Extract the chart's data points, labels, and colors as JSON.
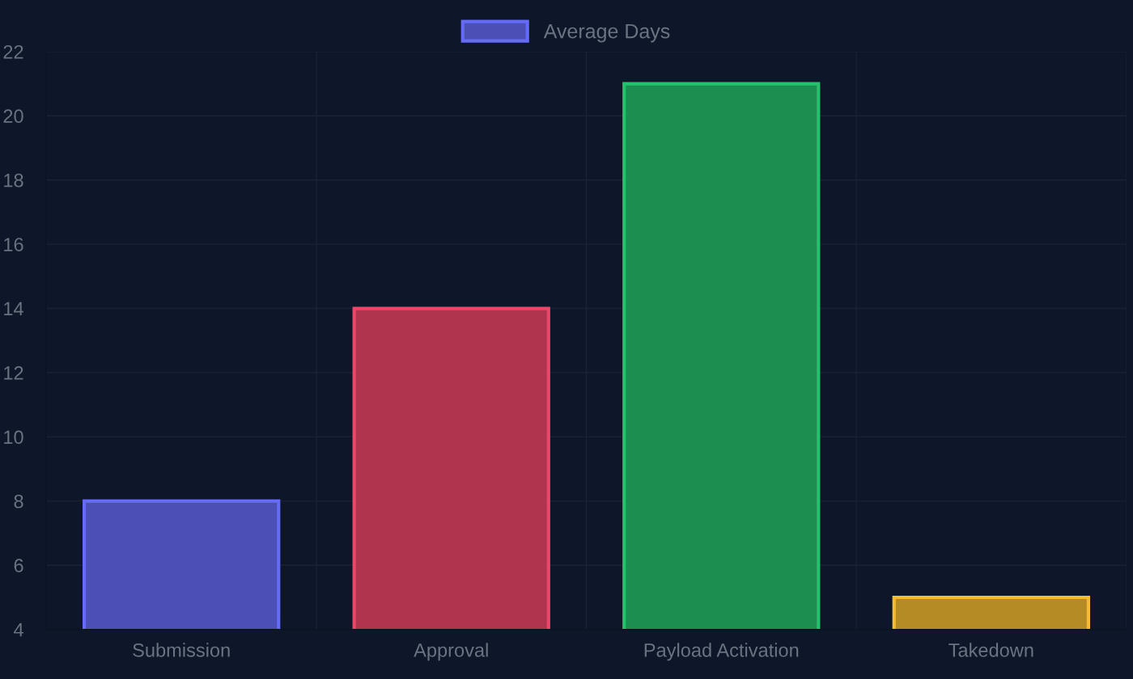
{
  "chart_data": {
    "type": "bar",
    "categories": [
      "Submission",
      "Approval",
      "Payload Activation",
      "Takedown"
    ],
    "series": [
      {
        "name": "Average Days",
        "values": [
          8,
          14,
          21,
          5
        ],
        "colors": [
          "#4b4fb6",
          "#b0344e",
          "#1c8f50",
          "#b58b26"
        ]
      }
    ],
    "ylim": [
      4,
      22
    ],
    "yticks": [
      4,
      6,
      8,
      10,
      12,
      14,
      16,
      18,
      20,
      22
    ],
    "grid": true,
    "legend": "top"
  }
}
